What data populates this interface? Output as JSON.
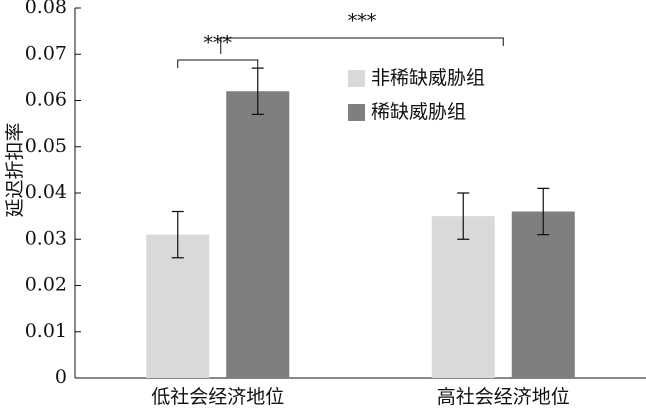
{
  "chart_data": {
    "type": "bar",
    "y_label": "延迟折扣率",
    "categories": [
      "低社会经济地位",
      "高社会经济地位"
    ],
    "series": [
      {
        "name": "非稀缺威胁组",
        "color": "#d9d9d9",
        "values": [
          0.031,
          0.035
        ],
        "errors": [
          0.005,
          0.005
        ]
      },
      {
        "name": "稀缺威胁组",
        "color": "#7f7f7f",
        "values": [
          0.062,
          0.036
        ],
        "errors": [
          0.005,
          0.005
        ]
      }
    ],
    "ylim": [
      0,
      0.08
    ],
    "yticks": [
      0,
      0.01,
      0.02,
      0.03,
      0.04,
      0.05,
      0.06,
      0.07,
      0.08
    ],
    "annotations": [
      "***",
      "***"
    ]
  }
}
